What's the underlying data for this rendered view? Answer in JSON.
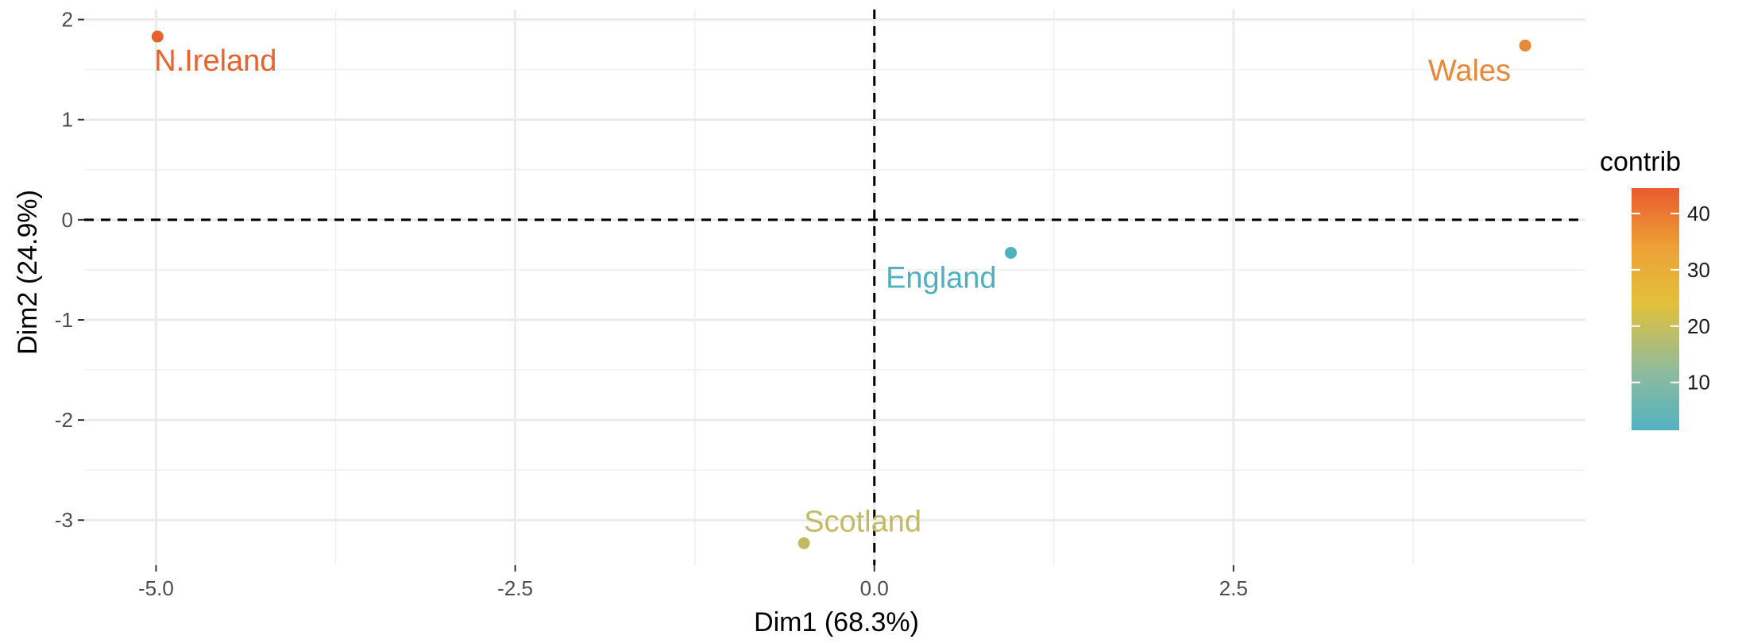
{
  "chart_data": {
    "type": "scatter",
    "xlabel": "Dim1 (68.3%)",
    "ylabel": "Dim2 (24.9%)",
    "xlim": [
      -5.5,
      4.95
    ],
    "ylim": [
      -3.45,
      2.1
    ],
    "x_ticks": [
      {
        "value": -5.0,
        "label": "-5.0"
      },
      {
        "value": -2.5,
        "label": "-2.5"
      },
      {
        "value": 0.0,
        "label": "0.0"
      },
      {
        "value": 2.5,
        "label": "2.5"
      }
    ],
    "x_minor_ticks": [
      -3.75,
      -1.25,
      1.25,
      3.75
    ],
    "y_ticks": [
      {
        "value": 2,
        "label": "2"
      },
      {
        "value": 1,
        "label": "1"
      },
      {
        "value": 0,
        "label": "0"
      },
      {
        "value": -1,
        "label": "-1"
      },
      {
        "value": -2,
        "label": "-2"
      },
      {
        "value": -3,
        "label": "-3"
      }
    ],
    "y_minor_ticks": [
      1.5,
      0.5,
      -0.5,
      -1.5,
      -2.5
    ],
    "reference_lines": {
      "x": 0,
      "y": 0,
      "style": "dashed"
    },
    "grid": true,
    "points": [
      {
        "label": "N.Ireland",
        "x": -4.99,
        "y": 1.83,
        "contrib": 44.5,
        "color": "#e8622e",
        "label_position": "below-right"
      },
      {
        "label": "Wales",
        "x": 4.53,
        "y": 1.74,
        "contrib": 37.0,
        "color": "#e98838",
        "label_position": "below-left"
      },
      {
        "label": "England",
        "x": 0.95,
        "y": -0.33,
        "contrib": 2.5,
        "color": "#4fb0bf",
        "label_position": "below-left"
      },
      {
        "label": "Scotland",
        "x": -0.49,
        "y": -3.23,
        "contrib": 16.0,
        "color": "#c5ba64",
        "label_position": "above-right"
      }
    ],
    "legend": {
      "title": "contrib",
      "placement": "right",
      "min": 1.5,
      "max": 44.5,
      "ticks": [
        {
          "value": 10,
          "label": "10"
        },
        {
          "value": 20,
          "label": "20"
        },
        {
          "value": 30,
          "label": "30"
        },
        {
          "value": 40,
          "label": "40"
        }
      ],
      "gradient": [
        {
          "value": 1.5,
          "color": "#52b2c3"
        },
        {
          "value": 12,
          "color": "#8fbb9c"
        },
        {
          "value": 24,
          "color": "#e2c03a"
        },
        {
          "value": 34,
          "color": "#eda136"
        },
        {
          "value": 44.5,
          "color": "#ea5a2e"
        }
      ]
    }
  }
}
